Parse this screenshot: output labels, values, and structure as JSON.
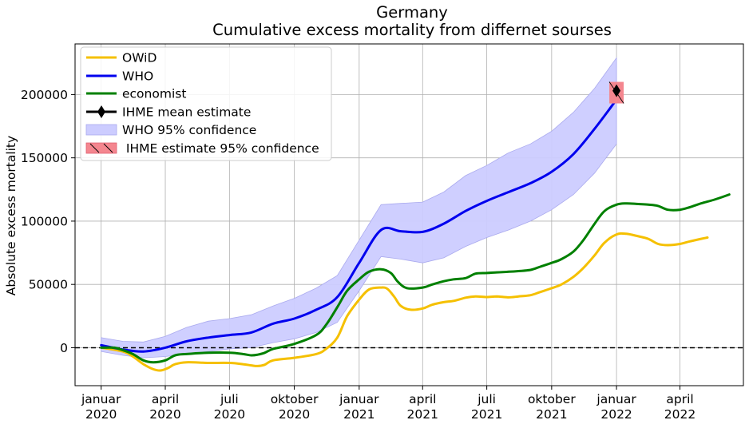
{
  "chart_data": {
    "type": "line",
    "title": "Germany",
    "subtitle": "Cumulative excess mortality from differnet sourses",
    "xlabel": "",
    "ylabel": "Absolute excess mortality",
    "ylim": [
      -30000,
      240000
    ],
    "xlim": [
      "2019-11-25",
      "2022-06-30"
    ],
    "grid": true,
    "legend_position": "top-left",
    "x_ticks": [
      {
        "date": "2020-01-01",
        "line1": "januar",
        "line2": "2020"
      },
      {
        "date": "2020-04-01",
        "line1": "april",
        "line2": "2020"
      },
      {
        "date": "2020-07-01",
        "line1": "juli",
        "line2": "2020"
      },
      {
        "date": "2020-10-01",
        "line1": "oktober",
        "line2": "2020"
      },
      {
        "date": "2021-01-01",
        "line1": "januar",
        "line2": "2021"
      },
      {
        "date": "2021-04-01",
        "line1": "april",
        "line2": "2021"
      },
      {
        "date": "2021-07-01",
        "line1": "juli",
        "line2": "2021"
      },
      {
        "date": "2021-10-01",
        "line1": "oktober",
        "line2": "2021"
      },
      {
        "date": "2022-01-01",
        "line1": "januar",
        "line2": "2022"
      },
      {
        "date": "2022-04-01",
        "line1": "april",
        "line2": "2022"
      }
    ],
    "y_ticks": [
      0,
      50000,
      100000,
      150000,
      200000
    ],
    "reference_line": {
      "y": 0,
      "style": "dashed",
      "color": "#000000"
    },
    "series": [
      {
        "name": "OWiD",
        "color": "#f5c000",
        "x": [
          "2020-01-01",
          "2020-02-01",
          "2020-02-15",
          "2020-03-01",
          "2020-03-15",
          "2020-03-25",
          "2020-04-05",
          "2020-04-15",
          "2020-05-01",
          "2020-06-01",
          "2020-07-01",
          "2020-07-20",
          "2020-08-01",
          "2020-08-10",
          "2020-08-20",
          "2020-09-01",
          "2020-10-01",
          "2020-11-01",
          "2020-11-15",
          "2020-12-01",
          "2020-12-15",
          "2021-01-01",
          "2021-01-15",
          "2021-02-01",
          "2021-02-10",
          "2021-02-20",
          "2021-03-01",
          "2021-03-15",
          "2021-04-01",
          "2021-04-15",
          "2021-05-01",
          "2021-05-15",
          "2021-06-01",
          "2021-06-15",
          "2021-07-01",
          "2021-07-15",
          "2021-08-01",
          "2021-08-15",
          "2021-09-01",
          "2021-09-15",
          "2021-10-01",
          "2021-10-15",
          "2021-11-01",
          "2021-11-15",
          "2021-12-01",
          "2021-12-15",
          "2022-01-01",
          "2022-01-15",
          "2022-02-01",
          "2022-02-15",
          "2022-03-01",
          "2022-03-15",
          "2022-04-01",
          "2022-04-15",
          "2022-05-01",
          "2022-05-10"
        ],
        "y": [
          0,
          -3000,
          -7000,
          -13000,
          -17000,
          -18000,
          -16000,
          -13000,
          -11500,
          -12000,
          -12000,
          -13000,
          -14000,
          -14500,
          -13500,
          -10000,
          -8000,
          -5000,
          -1000,
          8000,
          25000,
          38000,
          46000,
          47500,
          46500,
          40000,
          33000,
          30000,
          31000,
          34000,
          36000,
          37000,
          39500,
          40500,
          40000,
          40500,
          39800,
          40500,
          41500,
          44000,
          47000,
          50000,
          56000,
          63000,
          73000,
          83000,
          89500,
          90000,
          88000,
          86000,
          82000,
          81000,
          82000,
          84000,
          86000,
          87000
        ]
      },
      {
        "name": "WHO",
        "color": "#0000ee",
        "x": [
          "2020-01-01",
          "2020-02-01",
          "2020-03-01",
          "2020-04-01",
          "2020-05-01",
          "2020-06-01",
          "2020-07-01",
          "2020-08-01",
          "2020-09-01",
          "2020-10-01",
          "2020-11-01",
          "2020-12-01",
          "2021-01-01",
          "2021-02-01",
          "2021-03-01",
          "2021-04-01",
          "2021-05-01",
          "2021-06-01",
          "2021-07-01",
          "2021-08-01",
          "2021-09-01",
          "2021-10-01",
          "2021-11-01",
          "2021-12-01",
          "2022-01-01"
        ],
        "y": [
          2000,
          -1500,
          -3000,
          0,
          5000,
          8000,
          10000,
          12000,
          19000,
          23000,
          30000,
          40000,
          67000,
          93000,
          92000,
          91500,
          98000,
          108000,
          116000,
          123000,
          130000,
          139000,
          153000,
          173000,
          196000
        ],
        "lower": [
          -3000,
          -6000,
          -8000,
          -7000,
          -5000,
          -3000,
          -1000,
          0,
          4000,
          7000,
          12000,
          20000,
          45000,
          72000,
          70000,
          67000,
          71000,
          80000,
          87000,
          93000,
          100000,
          109000,
          121000,
          138000,
          161000
        ],
        "upper": [
          8000,
          5000,
          4500,
          9000,
          16000,
          21000,
          23000,
          26000,
          33000,
          39000,
          47000,
          57000,
          85000,
          113000,
          114000,
          115000,
          123000,
          136000,
          144000,
          154000,
          161000,
          171000,
          186000,
          205000,
          229000
        ],
        "band_name": "WHO 95% confidence",
        "band_color": "#ccccff"
      },
      {
        "name": "economist",
        "color": "#008000",
        "x": [
          "2020-01-01",
          "2020-01-20",
          "2020-02-01",
          "2020-02-15",
          "2020-03-01",
          "2020-03-15",
          "2020-04-01",
          "2020-04-15",
          "2020-05-01",
          "2020-06-01",
          "2020-07-01",
          "2020-07-20",
          "2020-08-01",
          "2020-08-10",
          "2020-08-20",
          "2020-09-01",
          "2020-10-01",
          "2020-11-01",
          "2020-11-15",
          "2020-12-01",
          "2020-12-15",
          "2021-01-01",
          "2021-01-15",
          "2021-02-01",
          "2021-02-15",
          "2021-02-25",
          "2021-03-10",
          "2021-04-01",
          "2021-04-15",
          "2021-05-01",
          "2021-05-15",
          "2021-06-01",
          "2021-06-15",
          "2021-07-01",
          "2021-07-15",
          "2021-08-01",
          "2021-08-15",
          "2021-09-01",
          "2021-09-15",
          "2021-10-01",
          "2021-10-15",
          "2021-11-01",
          "2021-11-15",
          "2021-12-01",
          "2021-12-15",
          "2022-01-01",
          "2022-01-15",
          "2022-02-01",
          "2022-02-15",
          "2022-03-01",
          "2022-03-15",
          "2022-04-01",
          "2022-04-15",
          "2022-05-01",
          "2022-05-20",
          "2022-06-10"
        ],
        "y": [
          0,
          0,
          -2000,
          -5000,
          -10000,
          -11500,
          -10000,
          -6000,
          -5000,
          -4000,
          -4000,
          -5000,
          -6000,
          -5500,
          -4000,
          -1000,
          3000,
          10000,
          18000,
          32000,
          45000,
          54000,
          60000,
          62000,
          59000,
          52000,
          47000,
          47500,
          50000,
          52500,
          54000,
          55000,
          58500,
          59000,
          59500,
          60000,
          60500,
          61500,
          64000,
          67000,
          70000,
          76000,
          85000,
          98000,
          108000,
          113000,
          114000,
          113500,
          113000,
          112000,
          109000,
          109000,
          111000,
          114000,
          117000,
          121000
        ]
      }
    ],
    "point_estimate": {
      "name": "IHME mean estimate",
      "date": "2022-01-01",
      "value": 203000,
      "lower": 193000,
      "upper": 210000,
      "color": "#000000",
      "band_name": " IHME estimate 95% confidence",
      "band_color": "#f4868f"
    }
  }
}
